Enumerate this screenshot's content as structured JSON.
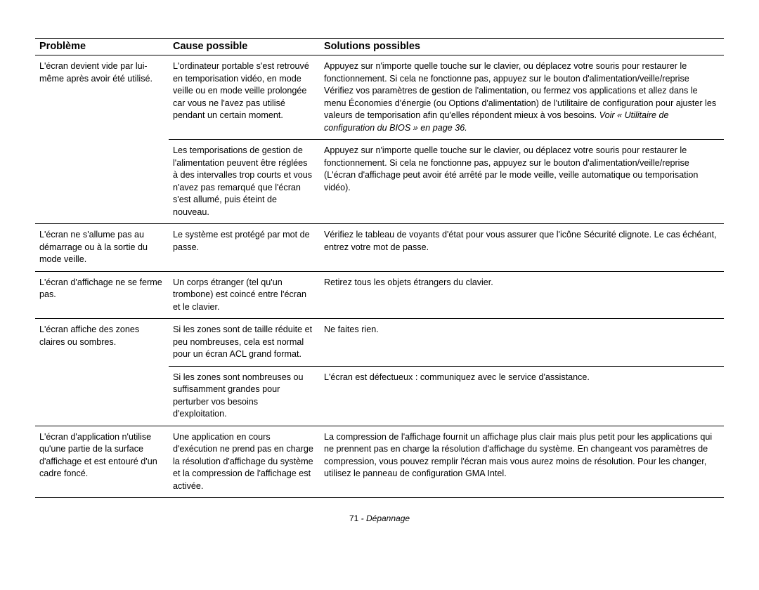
{
  "table": {
    "headers": {
      "problem": "Problème",
      "cause": "Cause possible",
      "solution": "Solutions possibles"
    },
    "rows": {
      "r1": {
        "problem": "L'écran devient vide par lui-même après avoir été utilisé.",
        "cause": "L'ordinateur portable s'est retrouvé en temporisation vidéo, en mode veille ou en mode veille prolongée car vous ne l'avez pas utilisé pendant un certain moment.",
        "solution_a": "Appuyez sur n'importe quelle touche sur le clavier, ou déplacez votre souris pour restaurer le fonctionnement. Si cela ne fonctionne pas, appuyez sur le bouton d'alimentation/veille/reprise Vérifiez vos paramètres de gestion de l'alimentation, ou fermez vos applications et allez dans le menu Économies d'énergie (ou Options d'alimentation) de l'utilitaire de configuration pour ajuster les valeurs de temporisation afin qu'elles répondent mieux à vos besoins. ",
        "solution_italic": "Voir « Utilitaire de configuration du BIOS » en page 36."
      },
      "r2": {
        "cause": "Les temporisations de gestion de l'alimentation peuvent être réglées à des intervalles trop courts et vous n'avez pas remarqué que l'écran s'est allumé, puis éteint de nouveau.",
        "solution": "Appuyez sur n'importe quelle touche sur le clavier, ou déplacez votre souris pour restaurer le fonctionnement. Si cela ne fonctionne pas, appuyez sur le bouton d'alimentation/veille/reprise (L'écran d'affichage peut avoir été arrêté par le mode veille, veille automatique ou temporisation vidéo)."
      },
      "r3": {
        "problem": "L'écran ne s'allume pas au démarrage ou à la sortie du mode veille.",
        "cause": "Le système est protégé par mot de passe.",
        "solution": "Vérifiez le tableau de voyants d'état pour vous assurer que l'icône Sécurité clignote. Le cas échéant, entrez votre mot de passe."
      },
      "r4": {
        "problem": "L'écran d'affichage ne se ferme pas.",
        "cause": "Un corps étranger (tel qu'un trombone) est coincé entre l'écran et le clavier.",
        "solution": "Retirez tous les objets étrangers du clavier."
      },
      "r5": {
        "problem": "L'écran affiche des zones claires ou sombres.",
        "cause": "Si les zones sont de taille réduite et peu nombreuses, cela est normal pour un écran ACL grand format.",
        "solution": "Ne faites rien."
      },
      "r6": {
        "cause": "Si les zones sont nombreuses ou suffisamment grandes pour perturber vos besoins d'exploitation.",
        "solution": "L'écran est défectueux : communiquez avec le service d'assistance."
      },
      "r7": {
        "problem": "L'écran d'application n'utilise qu'une partie de la surface d'affichage et est entouré d'un cadre foncé.",
        "cause": "Une application en cours d'exécution ne prend pas en charge la résolution d'affichage du système et la compression de l'affichage est activée.",
        "solution": "La compression de l'affichage fournit un affichage plus clair mais plus petit pour les applications qui ne prennent pas en charge la résolution d'affichage du système. En changeant vos paramètres de compression, vous pouvez remplir l'écran mais vous aurez moins de résolution. Pour les changer, utilisez le panneau de configuration GMA Intel."
      }
    }
  },
  "footer": {
    "page_number": "71",
    "separator": " - ",
    "section": "Dépannage"
  }
}
